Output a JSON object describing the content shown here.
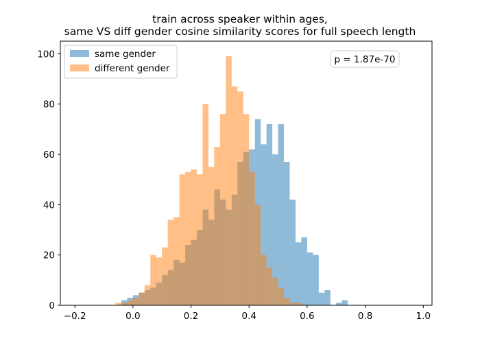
{
  "chart_data": {
    "type": "bar",
    "title": [
      "train across speaker within ages,",
      "same VS diff gender cosine similarity scores for full speech length"
    ],
    "xlabel": "",
    "ylabel": "",
    "xlim": [
      -0.25,
      1.03
    ],
    "ylim": [
      0,
      105
    ],
    "xticks": [
      -0.2,
      0.0,
      0.2,
      0.4,
      0.6,
      0.8,
      1.0
    ],
    "xtick_labels": [
      "−0.2",
      "0.0",
      "0.2",
      "0.4",
      "0.6",
      "0.8",
      "1.0"
    ],
    "yticks": [
      0,
      20,
      40,
      60,
      80,
      100
    ],
    "ytick_labels": [
      "0",
      "20",
      "40",
      "60",
      "80",
      "100"
    ],
    "bin_width": 0.02,
    "legend_position": "upper left",
    "annotation": "p = 1.87e-70",
    "series": [
      {
        "name": "same gender",
        "color": "#1f77b4",
        "alpha": 0.5,
        "bins": [
          {
            "x": -0.04,
            "count": 2
          },
          {
            "x": -0.02,
            "count": 3
          },
          {
            "x": 0.0,
            "count": 4
          },
          {
            "x": 0.02,
            "count": 5
          },
          {
            "x": 0.04,
            "count": 6
          },
          {
            "x": 0.06,
            "count": 7
          },
          {
            "x": 0.08,
            "count": 9
          },
          {
            "x": 0.1,
            "count": 12
          },
          {
            "x": 0.12,
            "count": 14
          },
          {
            "x": 0.14,
            "count": 18
          },
          {
            "x": 0.16,
            "count": 17
          },
          {
            "x": 0.18,
            "count": 24
          },
          {
            "x": 0.2,
            "count": 26
          },
          {
            "x": 0.22,
            "count": 30
          },
          {
            "x": 0.24,
            "count": 38
          },
          {
            "x": 0.26,
            "count": 34
          },
          {
            "x": 0.28,
            "count": 46
          },
          {
            "x": 0.3,
            "count": 42
          },
          {
            "x": 0.32,
            "count": 38
          },
          {
            "x": 0.34,
            "count": 44
          },
          {
            "x": 0.36,
            "count": 57
          },
          {
            "x": 0.38,
            "count": 61
          },
          {
            "x": 0.4,
            "count": 62
          },
          {
            "x": 0.42,
            "count": 74
          },
          {
            "x": 0.44,
            "count": 64
          },
          {
            "x": 0.46,
            "count": 72
          },
          {
            "x": 0.48,
            "count": 60
          },
          {
            "x": 0.5,
            "count": 72
          },
          {
            "x": 0.52,
            "count": 57
          },
          {
            "x": 0.54,
            "count": 42
          },
          {
            "x": 0.56,
            "count": 25
          },
          {
            "x": 0.58,
            "count": 27
          },
          {
            "x": 0.6,
            "count": 21
          },
          {
            "x": 0.62,
            "count": 20
          },
          {
            "x": 0.64,
            "count": 5
          },
          {
            "x": 0.66,
            "count": 6
          },
          {
            "x": 0.68,
            "count": 0
          },
          {
            "x": 0.7,
            "count": 1
          },
          {
            "x": 0.72,
            "count": 2
          }
        ]
      },
      {
        "name": "different gender",
        "color": "#ff7f0e",
        "alpha": 0.5,
        "bins": [
          {
            "x": -0.06,
            "count": 1
          },
          {
            "x": -0.04,
            "count": 1
          },
          {
            "x": -0.02,
            "count": 2
          },
          {
            "x": 0.0,
            "count": 3
          },
          {
            "x": 0.02,
            "count": 5
          },
          {
            "x": 0.04,
            "count": 8
          },
          {
            "x": 0.06,
            "count": 20
          },
          {
            "x": 0.08,
            "count": 19
          },
          {
            "x": 0.1,
            "count": 23
          },
          {
            "x": 0.12,
            "count": 34
          },
          {
            "x": 0.14,
            "count": 35
          },
          {
            "x": 0.16,
            "count": 52
          },
          {
            "x": 0.18,
            "count": 53
          },
          {
            "x": 0.2,
            "count": 54
          },
          {
            "x": 0.22,
            "count": 52
          },
          {
            "x": 0.24,
            "count": 80
          },
          {
            "x": 0.26,
            "count": 55
          },
          {
            "x": 0.28,
            "count": 63
          },
          {
            "x": 0.3,
            "count": 76
          },
          {
            "x": 0.32,
            "count": 99
          },
          {
            "x": 0.34,
            "count": 87
          },
          {
            "x": 0.36,
            "count": 85
          },
          {
            "x": 0.38,
            "count": 76
          },
          {
            "x": 0.4,
            "count": 53
          },
          {
            "x": 0.42,
            "count": 40
          },
          {
            "x": 0.44,
            "count": 20
          },
          {
            "x": 0.46,
            "count": 15
          },
          {
            "x": 0.48,
            "count": 11
          },
          {
            "x": 0.5,
            "count": 7
          },
          {
            "x": 0.52,
            "count": 3
          },
          {
            "x": 0.54,
            "count": 1
          },
          {
            "x": 0.56,
            "count": 1
          }
        ]
      }
    ]
  }
}
